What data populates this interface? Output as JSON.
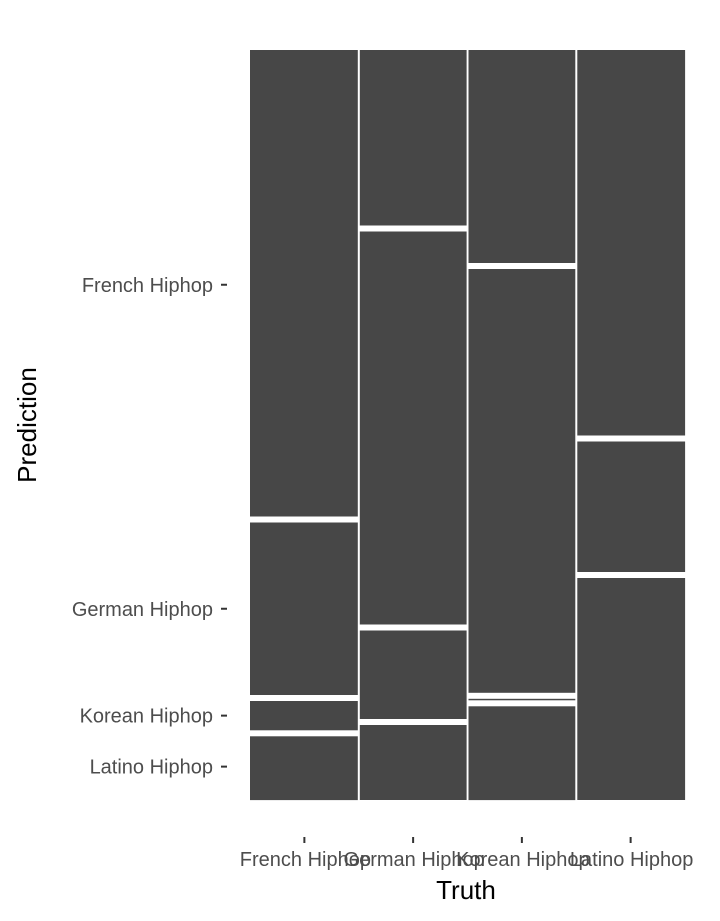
{
  "chart_data": {
    "type": "mosaic",
    "xlabel": "Truth",
    "ylabel": "Prediction",
    "x_categories": [
      "French Hiphop",
      "German Hiphop",
      "Korean Hiphop",
      "Latino Hiphop"
    ],
    "y_categories": [
      "French Hiphop",
      "German Hiphop",
      "Korean Hiphop",
      "Latino Hiphop"
    ],
    "column_shares": [
      0.25,
      0.25,
      0.25,
      0.25
    ],
    "proportions": {
      "French Hiphop": {
        "French Hiphop": 0.626,
        "German Hiphop": 0.238,
        "Korean Hiphop": 0.047,
        "Latino Hiphop": 0.089
      },
      "German Hiphop": {
        "French Hiphop": 0.238,
        "German Hiphop": 0.532,
        "Korean Hiphop": 0.126,
        "Latino Hiphop": 0.104
      },
      "Korean Hiphop": {
        "French Hiphop": 0.288,
        "German Hiphop": 0.573,
        "Korean Hiphop": 0.01,
        "Latino Hiphop": 0.129
      },
      "Latino Hiphop": {
        "French Hiphop": 0.518,
        "German Hiphop": 0.182,
        "Korean Hiphop": 0.0,
        "Latino Hiphop": 0.3
      }
    },
    "grid": false,
    "background": "#ffffff",
    "tile_color": "#474747"
  }
}
